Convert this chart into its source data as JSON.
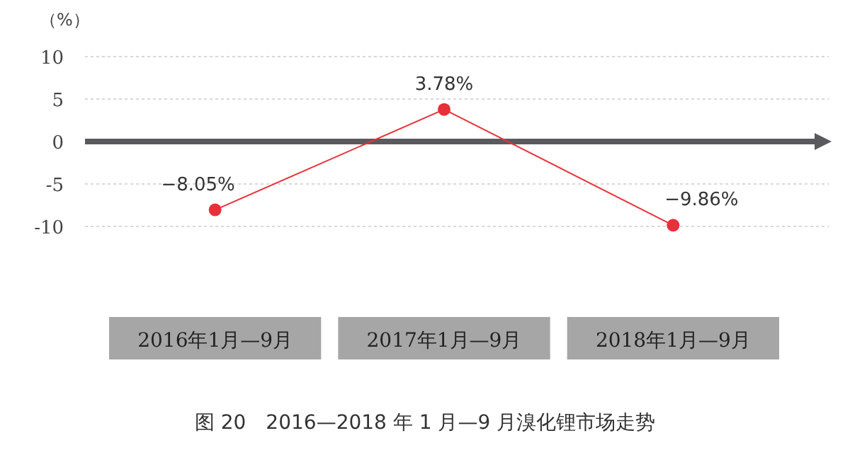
{
  "chart_data": {
    "type": "line",
    "title": "图 20　2016—2018 年 1 月—9 月溴化锂市场走势",
    "ylabel": "（%）",
    "categories": [
      "2016年1月—9月",
      "2017年1月—9月",
      "2018年1月—9月"
    ],
    "series": [
      {
        "color": "#e8303a",
        "values": [
          -8.05,
          3.78,
          -9.86
        ],
        "value_labels": [
          "−8.05%",
          "3.78%",
          "−9.86%"
        ]
      }
    ],
    "ylim": [
      -10,
      10
    ],
    "yticks": [
      -10,
      -5,
      0,
      5,
      10
    ],
    "grid": "y",
    "marker": "circle",
    "line_style": "solid"
  }
}
